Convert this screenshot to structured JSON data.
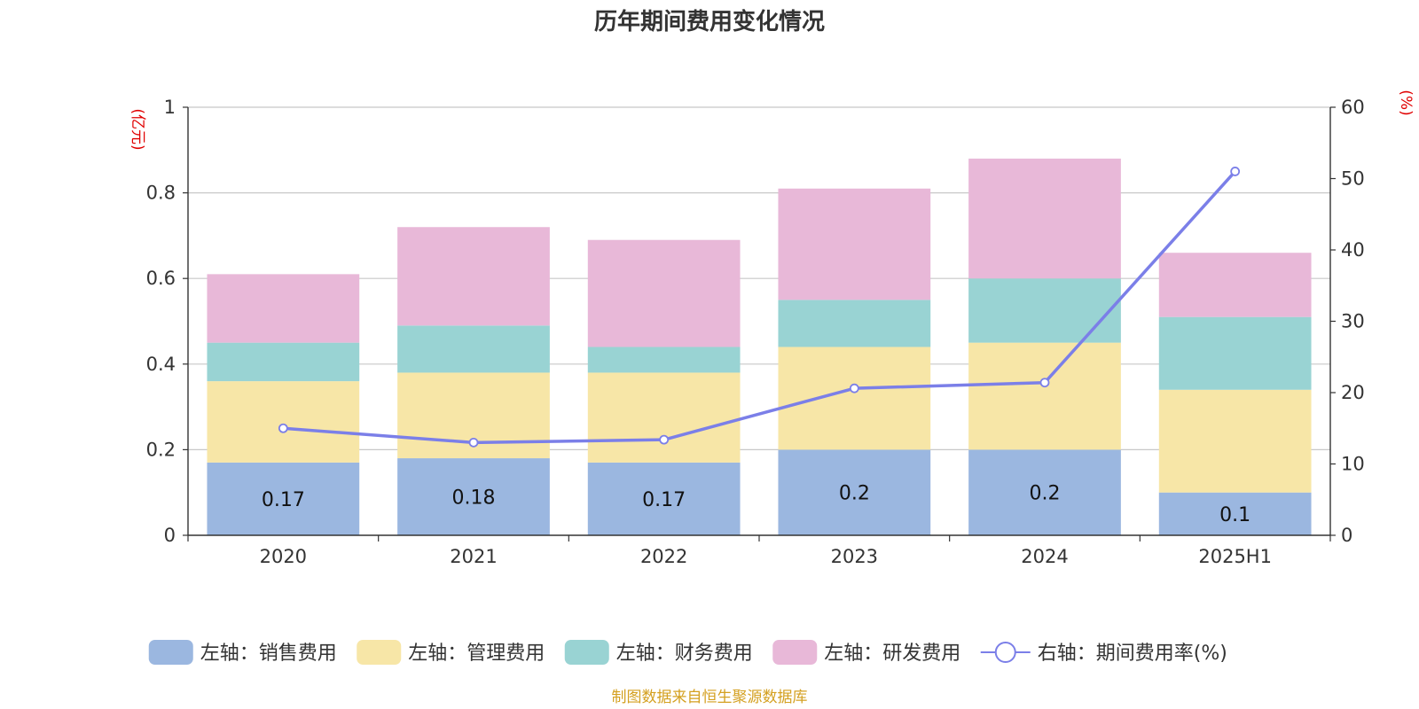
{
  "chart_data": {
    "type": "bar",
    "stacked": true,
    "title": "历年期间费用变化情况",
    "categories": [
      "2020",
      "2021",
      "2022",
      "2023",
      "2024",
      "2025H1"
    ],
    "y_left": {
      "unit": "(亿元)",
      "ticks": [
        "0",
        "0.2",
        "0.4",
        "0.6",
        "0.8",
        "1"
      ],
      "range": [
        0,
        1
      ]
    },
    "y_right": {
      "unit": "(%)",
      "ticks": [
        "0",
        "10",
        "20",
        "30",
        "40",
        "50",
        "60"
      ],
      "range": [
        0,
        60
      ]
    },
    "series": [
      {
        "name": "左轴：销售费用",
        "type": "bar",
        "axis": "left",
        "color": "#9bb7e0",
        "values": [
          0.17,
          0.18,
          0.17,
          0.2,
          0.2,
          0.1
        ],
        "labels": [
          "0.17",
          "0.18",
          "0.17",
          "0.2",
          "0.2",
          "0.1"
        ]
      },
      {
        "name": "左轴：管理费用",
        "type": "bar",
        "axis": "left",
        "color": "#f7e6a7",
        "values": [
          0.19,
          0.2,
          0.21,
          0.24,
          0.25,
          0.24
        ]
      },
      {
        "name": "左轴：财务费用",
        "type": "bar",
        "axis": "left",
        "color": "#99d3d3",
        "values": [
          0.09,
          0.11,
          0.06,
          0.11,
          0.15,
          0.17
        ]
      },
      {
        "name": "左轴：研发费用",
        "type": "bar",
        "axis": "left",
        "color": "#e8b8d8",
        "values": [
          0.16,
          0.23,
          0.25,
          0.26,
          0.28,
          0.15
        ]
      },
      {
        "name": "右轴：期间费用率(%)",
        "type": "line",
        "axis": "right",
        "color": "#7b7fe8",
        "values": [
          15.0,
          13.0,
          13.4,
          20.6,
          21.4,
          51.0
        ]
      }
    ],
    "grid": true,
    "legend_position": "bottom",
    "source": "制图数据来自恒生聚源数据库"
  }
}
